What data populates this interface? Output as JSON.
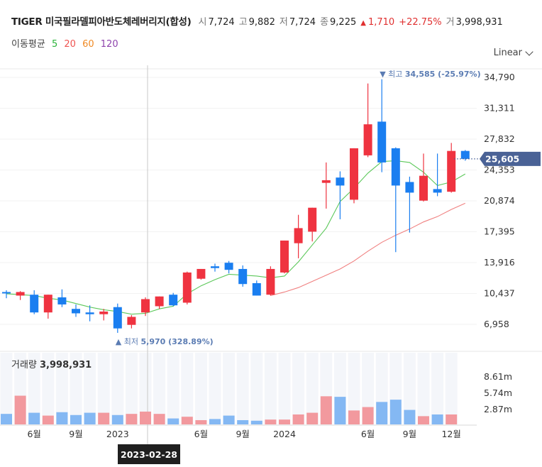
{
  "header": {
    "name": "TIGER 미국필라델피아반도체레버리지(합성)",
    "open_label": "시",
    "open": "7,724",
    "high_label": "고",
    "high": "9,882",
    "low_label": "저",
    "low": "7,724",
    "close_label": "종",
    "close": "9,225",
    "change_arrow": "▲",
    "change": "1,710",
    "change_pct": "+22.75%",
    "volume_label": "거",
    "volume": "3,998,931"
  },
  "ma_legend": {
    "label": "이동평균",
    "periods": [
      {
        "text": "5",
        "color": "#2bb33a"
      },
      {
        "text": "20",
        "color": "#ef5350"
      },
      {
        "text": "60",
        "color": "#f08a24"
      },
      {
        "text": "120",
        "color": "#8e44ad"
      }
    ]
  },
  "scale_select": {
    "value": "Linear",
    "icon": "chevron-down-icon"
  },
  "crosshair": {
    "date": "2023-02-28"
  },
  "colors": {
    "up": "#ef3340",
    "down": "#1a7ef0",
    "vol_up": "#f2999e",
    "vol_down": "#84b8f3",
    "ma5": "#5cc85a",
    "ma20": "#f08080",
    "current_price": "#4a6296"
  },
  "chart_data": {
    "type": "candlestick",
    "price_axis": {
      "ticks": [
        34790,
        31311,
        27832,
        24353,
        20874,
        17395,
        13916,
        10437,
        6958
      ],
      "tick_labels": [
        "34,790",
        "31,311",
        "27,832",
        "24,353",
        "20,874",
        "17,395",
        "13,916",
        "10,437",
        "6,958"
      ]
    },
    "current_price": {
      "value": 25605,
      "label": "25,605"
    },
    "high_marker": {
      "text": "최고",
      "value": "34,585",
      "pct": "(-25.97%)",
      "arrow": "▼"
    },
    "low_marker": {
      "text": "최저",
      "value": "5,970",
      "pct": "(328.89%)",
      "arrow": "▲"
    },
    "volume_title": {
      "label": "거래량",
      "value": "3,998,931"
    },
    "volume_axis": {
      "ticks": [
        8.61,
        5.74,
        2.87
      ],
      "tick_labels": [
        "8.61m",
        "5.74m",
        "2.87m"
      ]
    },
    "x_labels": [
      {
        "text": "6월",
        "i": 2
      },
      {
        "text": "9월",
        "i": 5
      },
      {
        "text": "2023",
        "i": 8
      },
      {
        "text": "6월",
        "i": 14
      },
      {
        "text": "9월",
        "i": 17
      },
      {
        "text": "2024",
        "i": 20
      },
      {
        "text": "6월",
        "i": 26
      },
      {
        "text": "9월",
        "i": 29
      },
      {
        "text": "12월",
        "i": 32
      }
    ],
    "candles": [
      {
        "o": 10600,
        "h": 10800,
        "l": 9900,
        "c": 10500,
        "v": 2.1
      },
      {
        "o": 10200,
        "h": 10700,
        "l": 9700,
        "c": 10600,
        "v": 5.3
      },
      {
        "o": 10300,
        "h": 10800,
        "l": 8100,
        "c": 8300,
        "v": 2.3
      },
      {
        "o": 8300,
        "h": 10300,
        "l": 7600,
        "c": 10300,
        "v": 1.8
      },
      {
        "o": 10000,
        "h": 10900,
        "l": 8900,
        "c": 9200,
        "v": 2.4
      },
      {
        "o": 8700,
        "h": 9200,
        "l": 7800,
        "c": 8200,
        "v": 1.9
      },
      {
        "o": 8300,
        "h": 9100,
        "l": 7300,
        "c": 8100,
        "v": 2.3
      },
      {
        "o": 8100,
        "h": 8700,
        "l": 7400,
        "c": 8400,
        "v": 2.3
      },
      {
        "o": 8900,
        "h": 9300,
        "l": 6000,
        "c": 6500,
        "v": 1.9
      },
      {
        "o": 6900,
        "h": 8000,
        "l": 6500,
        "c": 7800,
        "v": 2.1
      },
      {
        "o": 8300,
        "h": 10000,
        "l": 7900,
        "c": 9800,
        "v": 2.5
      },
      {
        "o": 9000,
        "h": 10100,
        "l": 8700,
        "c": 10100,
        "v": 2.1
      },
      {
        "o": 10300,
        "h": 10500,
        "l": 9000,
        "c": 9100,
        "v": 1.3
      },
      {
        "o": 9400,
        "h": 12900,
        "l": 9200,
        "c": 12800,
        "v": 1.6
      },
      {
        "o": 12100,
        "h": 13200,
        "l": 12000,
        "c": 13200,
        "v": 1.0
      },
      {
        "o": 13500,
        "h": 13800,
        "l": 12900,
        "c": 13300,
        "v": 1.2
      },
      {
        "o": 13900,
        "h": 14100,
        "l": 12700,
        "c": 13100,
        "v": 1.8
      },
      {
        "o": 13200,
        "h": 13600,
        "l": 11200,
        "c": 11500,
        "v": 1.0
      },
      {
        "o": 11600,
        "h": 11900,
        "l": 10200,
        "c": 10200,
        "v": 0.9
      },
      {
        "o": 10300,
        "h": 13500,
        "l": 10200,
        "c": 13200,
        "v": 1.1
      },
      {
        "o": 12800,
        "h": 16400,
        "l": 12700,
        "c": 16400,
        "v": 1.1
      },
      {
        "o": 16100,
        "h": 19300,
        "l": 14400,
        "c": 17800,
        "v": 2.0
      },
      {
        "o": 17400,
        "h": 20100,
        "l": 16300,
        "c": 20100,
        "v": 2.3
      },
      {
        "o": 22900,
        "h": 25200,
        "l": 20000,
        "c": 23200,
        "v": 5.2
      },
      {
        "o": 23500,
        "h": 24200,
        "l": 18800,
        "c": 22600,
        "v": 5.1
      },
      {
        "o": 21000,
        "h": 26800,
        "l": 20600,
        "c": 26800,
        "v": 2.7
      },
      {
        "o": 26000,
        "h": 34100,
        "l": 25800,
        "c": 29500,
        "v": 3.3
      },
      {
        "o": 29800,
        "h": 34585,
        "l": 24100,
        "c": 25200,
        "v": 4.2
      },
      {
        "o": 26800,
        "h": 26900,
        "l": 15100,
        "c": 22600,
        "v": 4.6
      },
      {
        "o": 23000,
        "h": 23600,
        "l": 17300,
        "c": 21800,
        "v": 2.8
      },
      {
        "o": 20900,
        "h": 26200,
        "l": 20800,
        "c": 23700,
        "v": 1.7
      },
      {
        "o": 22200,
        "h": 26200,
        "l": 21400,
        "c": 21800,
        "v": 2.0
      },
      {
        "o": 21900,
        "h": 27400,
        "l": 21800,
        "c": 26500,
        "v": 2.0
      },
      {
        "o": 26500,
        "h": 26600,
        "l": 25400,
        "c": 25605,
        "v": 0.15
      }
    ],
    "ma5": [
      10400,
      10300,
      10200,
      9900,
      9700,
      9300,
      8900,
      8600,
      8400,
      8100,
      8200,
      8700,
      9000,
      10400,
      11300,
      12000,
      12600,
      12500,
      12400,
      12200,
      12400,
      14000,
      15900,
      17800,
      20800,
      22300,
      24000,
      25300,
      25400,
      25200,
      24100,
      22600,
      23000,
      23900
    ],
    "ma20": [
      null,
      null,
      null,
      null,
      null,
      null,
      null,
      null,
      null,
      null,
      null,
      null,
      null,
      null,
      null,
      null,
      null,
      null,
      null,
      10200,
      10600,
      11100,
      11800,
      12500,
      13200,
      14100,
      15200,
      16200,
      17000,
      17700,
      18500,
      19100,
      19900,
      20600
    ]
  }
}
